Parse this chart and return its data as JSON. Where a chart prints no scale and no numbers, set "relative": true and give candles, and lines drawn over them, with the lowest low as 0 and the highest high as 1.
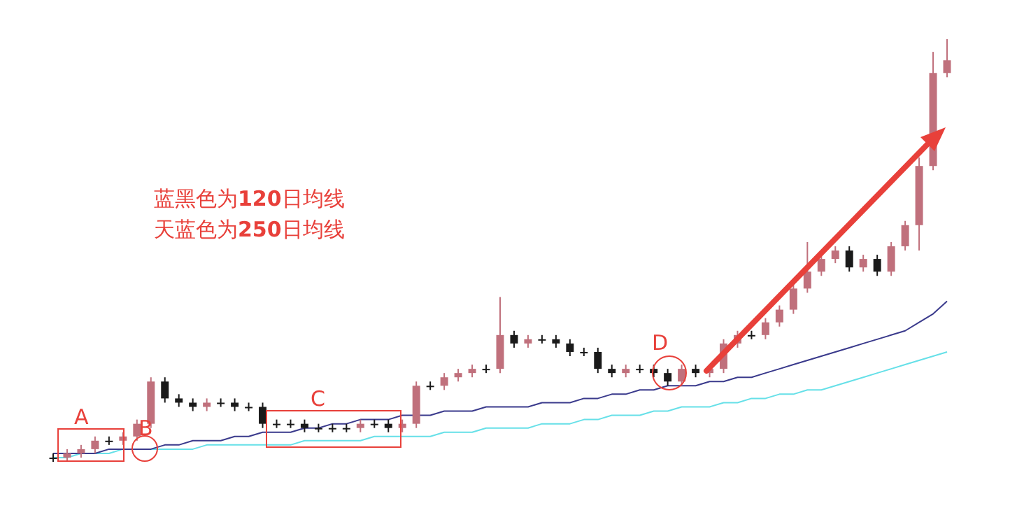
{
  "chart_data": {
    "type": "candlestick",
    "relative": true,
    "categories": [
      null,
      null,
      null,
      null,
      null,
      null,
      null,
      null,
      null,
      null,
      null,
      null,
      null,
      null,
      null,
      null,
      null,
      null,
      null,
      null,
      null,
      null,
      null,
      null,
      null,
      null,
      null,
      null,
      null,
      null,
      null,
      null,
      null,
      null,
      null,
      null,
      null,
      null,
      null,
      null,
      null,
      null,
      null,
      null,
      null,
      null,
      null,
      null,
      null,
      null,
      null,
      null,
      null,
      null,
      null,
      null,
      null,
      null,
      null,
      null,
      null,
      null,
      null,
      null,
      null
    ],
    "annotations": [
      "蓝黑色为120日均线",
      "天蓝色为250日均线",
      "A",
      "B",
      "C",
      "D"
    ],
    "series": [
      {
        "colors": [
          "#1a1a1a",
          "#c0707c",
          "#c0707c",
          "#c0707c",
          "#1a1a1a",
          "#c0707c",
          "#c0707c",
          "#c0707c",
          "#1a1a1a",
          "#1a1a1a",
          "#1a1a1a",
          "#c0707c",
          "#1a1a1a",
          "#1a1a1a",
          "#1a1a1a",
          "#1a1a1a",
          "#1a1a1a",
          "#1a1a1a",
          "#1a1a1a",
          "#1a1a1a",
          "#1a1a1a",
          "#1a1a1a",
          "#c0707c",
          "#1a1a1a",
          "#1a1a1a",
          "#c0707c",
          "#c0707c",
          "#1a1a1a",
          "#c0707c",
          "#c0707c",
          "#c0707c",
          "#1a1a1a",
          "#c0707c",
          "#1a1a1a",
          "#c0707c",
          "#1a1a1a",
          "#1a1a1a",
          "#1a1a1a",
          "#1a1a1a",
          "#1a1a1a",
          "#1a1a1a",
          "#c0707c",
          "#1a1a1a",
          "#1a1a1a",
          "#1a1a1a",
          "#c0707c",
          "#1a1a1a",
          "#c0707c",
          "#c0707c",
          "#c0707c",
          "#1a1a1a",
          "#c0707c",
          "#c0707c",
          "#c0707c",
          "#c0707c",
          "#c0707c",
          "#c0707c",
          "#1a1a1a",
          "#c0707c",
          "#1a1a1a",
          "#c0707c",
          "#c0707c",
          "#c0707c",
          "#c0707c",
          "#c0707c"
        ],
        "ohlc": [
          [
            0.01,
            0.02,
            0.0,
            0.01
          ],
          [
            0.01,
            0.03,
            0.0,
            0.02
          ],
          [
            0.02,
            0.04,
            0.01,
            0.03
          ],
          [
            0.03,
            0.06,
            0.02,
            0.05
          ],
          [
            0.05,
            0.06,
            0.04,
            0.05
          ],
          [
            0.05,
            0.07,
            0.04,
            0.06
          ],
          [
            0.06,
            0.1,
            0.05,
            0.09
          ],
          [
            0.09,
            0.2,
            0.08,
            0.19
          ],
          [
            0.19,
            0.2,
            0.14,
            0.15
          ],
          [
            0.15,
            0.16,
            0.13,
            0.14
          ],
          [
            0.14,
            0.15,
            0.12,
            0.13
          ],
          [
            0.13,
            0.15,
            0.12,
            0.14
          ],
          [
            0.14,
            0.15,
            0.13,
            0.14
          ],
          [
            0.14,
            0.15,
            0.12,
            0.13
          ],
          [
            0.13,
            0.14,
            0.12,
            0.13
          ],
          [
            0.13,
            0.14,
            0.08,
            0.09
          ],
          [
            0.09,
            0.1,
            0.08,
            0.09
          ],
          [
            0.09,
            0.1,
            0.08,
            0.09
          ],
          [
            0.09,
            0.1,
            0.07,
            0.08
          ],
          [
            0.08,
            0.09,
            0.07,
            0.08
          ],
          [
            0.08,
            0.09,
            0.07,
            0.08
          ],
          [
            0.08,
            0.09,
            0.07,
            0.08
          ],
          [
            0.08,
            0.1,
            0.07,
            0.09
          ],
          [
            0.09,
            0.1,
            0.08,
            0.09
          ],
          [
            0.09,
            0.1,
            0.07,
            0.08
          ],
          [
            0.08,
            0.1,
            0.07,
            0.09
          ],
          [
            0.09,
            0.19,
            0.08,
            0.18
          ],
          [
            0.18,
            0.19,
            0.17,
            0.18
          ],
          [
            0.18,
            0.21,
            0.17,
            0.2
          ],
          [
            0.2,
            0.22,
            0.19,
            0.21
          ],
          [
            0.21,
            0.23,
            0.2,
            0.22
          ],
          [
            0.22,
            0.23,
            0.21,
            0.22
          ],
          [
            0.22,
            0.39,
            0.21,
            0.3
          ],
          [
            0.3,
            0.31,
            0.27,
            0.28
          ],
          [
            0.28,
            0.3,
            0.27,
            0.29
          ],
          [
            0.29,
            0.3,
            0.28,
            0.29
          ],
          [
            0.29,
            0.3,
            0.27,
            0.28
          ],
          [
            0.28,
            0.29,
            0.25,
            0.26
          ],
          [
            0.26,
            0.27,
            0.25,
            0.26
          ],
          [
            0.26,
            0.27,
            0.21,
            0.22
          ],
          [
            0.22,
            0.23,
            0.2,
            0.21
          ],
          [
            0.21,
            0.23,
            0.2,
            0.22
          ],
          [
            0.22,
            0.23,
            0.21,
            0.22
          ],
          [
            0.22,
            0.23,
            0.2,
            0.21
          ],
          [
            0.21,
            0.22,
            0.18,
            0.19
          ],
          [
            0.19,
            0.23,
            0.18,
            0.22
          ],
          [
            0.22,
            0.23,
            0.2,
            0.21
          ],
          [
            0.21,
            0.23,
            0.2,
            0.22
          ],
          [
            0.22,
            0.29,
            0.21,
            0.28
          ],
          [
            0.28,
            0.31,
            0.27,
            0.3
          ],
          [
            0.3,
            0.31,
            0.29,
            0.3
          ],
          [
            0.3,
            0.34,
            0.29,
            0.33
          ],
          [
            0.33,
            0.37,
            0.32,
            0.36
          ],
          [
            0.36,
            0.42,
            0.35,
            0.41
          ],
          [
            0.41,
            0.52,
            0.4,
            0.45
          ],
          [
            0.45,
            0.49,
            0.44,
            0.48
          ],
          [
            0.48,
            0.51,
            0.47,
            0.5
          ],
          [
            0.5,
            0.51,
            0.45,
            0.46
          ],
          [
            0.46,
            0.49,
            0.45,
            0.48
          ],
          [
            0.48,
            0.49,
            0.44,
            0.45
          ],
          [
            0.45,
            0.52,
            0.44,
            0.51
          ],
          [
            0.51,
            0.57,
            0.5,
            0.56
          ],
          [
            0.56,
            0.72,
            0.5,
            0.7
          ],
          [
            0.7,
            0.97,
            0.69,
            0.92
          ],
          [
            0.92,
            1.0,
            0.91,
            0.95
          ]
        ]
      },
      {
        "type": "line",
        "color": "#3a3a8c",
        "values": [
          0.02,
          0.02,
          0.02,
          0.02,
          0.03,
          0.03,
          0.03,
          0.03,
          0.04,
          0.04,
          0.05,
          0.05,
          0.05,
          0.06,
          0.06,
          0.07,
          0.07,
          0.07,
          0.08,
          0.08,
          0.09,
          0.09,
          0.1,
          0.1,
          0.1,
          0.11,
          0.11,
          0.11,
          0.12,
          0.12,
          0.12,
          0.13,
          0.13,
          0.13,
          0.13,
          0.14,
          0.14,
          0.14,
          0.15,
          0.15,
          0.16,
          0.16,
          0.17,
          0.17,
          0.18,
          0.18,
          0.18,
          0.19,
          0.19,
          0.2,
          0.2,
          0.21,
          0.22,
          0.23,
          0.24,
          0.25,
          0.26,
          0.27,
          0.28,
          0.29,
          0.3,
          0.31,
          0.33,
          0.35,
          0.38
        ]
      },
      {
        "type": "line",
        "color": "#66e0e8",
        "values": [
          0.01,
          0.01,
          0.02,
          0.02,
          0.02,
          0.03,
          0.03,
          0.03,
          0.03,
          0.03,
          0.03,
          0.04,
          0.04,
          0.04,
          0.04,
          0.04,
          0.04,
          0.04,
          0.05,
          0.05,
          0.05,
          0.05,
          0.05,
          0.06,
          0.06,
          0.06,
          0.06,
          0.06,
          0.07,
          0.07,
          0.07,
          0.08,
          0.08,
          0.08,
          0.08,
          0.09,
          0.09,
          0.09,
          0.1,
          0.1,
          0.11,
          0.11,
          0.11,
          0.12,
          0.12,
          0.13,
          0.13,
          0.13,
          0.14,
          0.14,
          0.15,
          0.15,
          0.16,
          0.16,
          0.17,
          0.17,
          0.18,
          0.19,
          0.2,
          0.21,
          0.22,
          0.23,
          0.24,
          0.25,
          0.26
        ]
      }
    ]
  }
}
